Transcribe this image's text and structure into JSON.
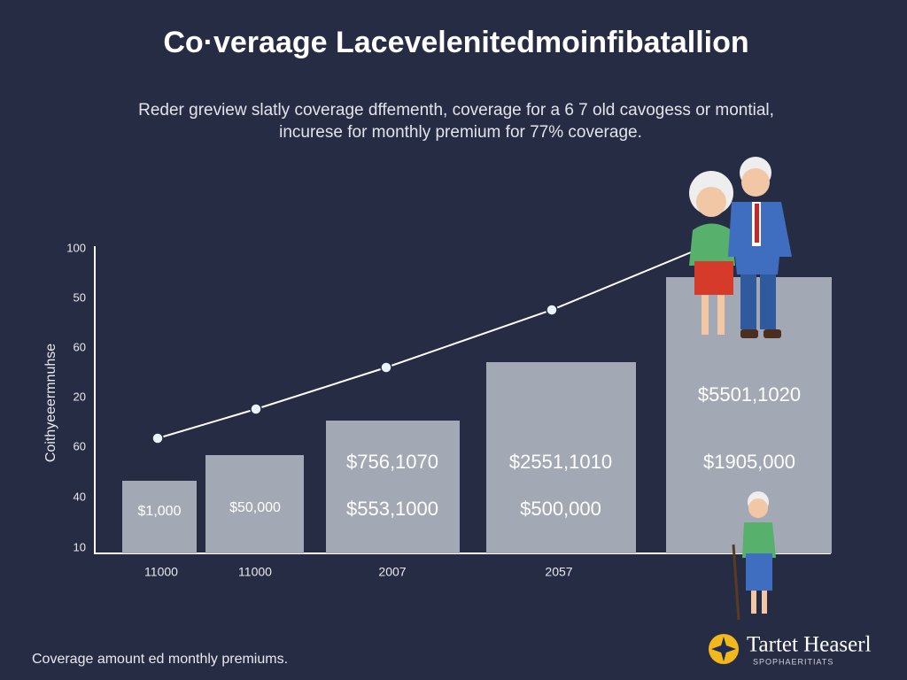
{
  "header": {
    "title": "Co·veraage Lacevelenitedmoinfibatallion",
    "subtitle": [
      "Reder greview slatly coverage dffementh, coverage for a 6 7 old cavogess or montial,",
      "incurese for monthly premium for 77% coverage."
    ]
  },
  "axis": {
    "label": "Coithyeeermnuhse",
    "ticks": [
      "100",
      "50",
      "60",
      "20",
      "60",
      "40",
      "10"
    ]
  },
  "bars": [
    {
      "labels": [
        "$1,000"
      ]
    },
    {
      "labels": [
        "$50,000"
      ]
    },
    {
      "labels": [
        "$756,1070",
        "$553,1000"
      ]
    },
    {
      "labels": [
        "$2551,1010",
        "$500,000"
      ]
    },
    {
      "labels": [
        "$5501,1020",
        "$1905,000"
      ]
    }
  ],
  "x_labels": [
    "11000",
    "11000",
    "2007",
    "2057"
  ],
  "footer": "Coverage amount ed monthly premiums.",
  "logo": {
    "name": "Tartet Heaserl",
    "tagline": "SPOPHAERITIATS"
  }
}
